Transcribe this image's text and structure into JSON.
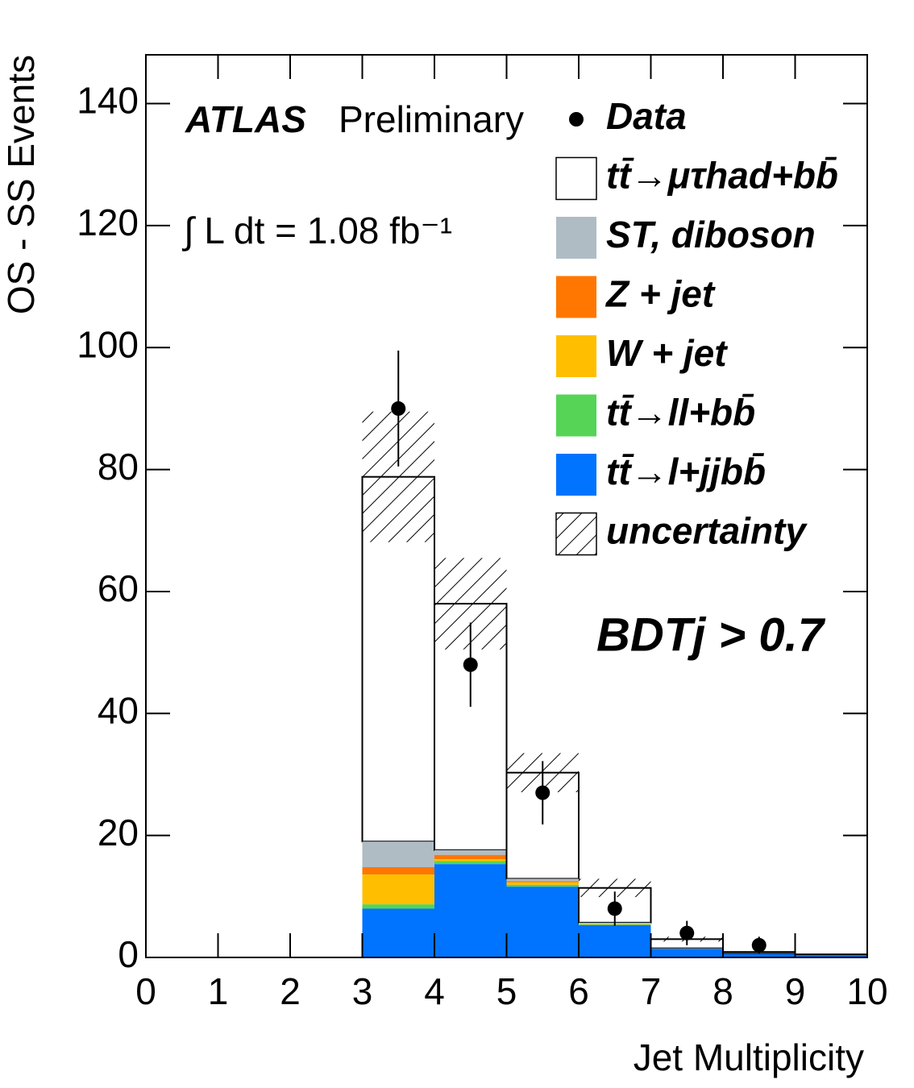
{
  "chart_data": {
    "type": "histogram",
    "xlabel": "Jet Multiplicity",
    "ylabel": "OS - SS Events",
    "annotations": {
      "experiment": "ATLAS",
      "status": "Preliminary",
      "luminosity": "∫ L dt = 1.08 fb⁻¹",
      "selection": "BDTj > 0.7"
    },
    "bins": [
      0,
      1,
      2,
      3,
      4,
      5,
      6,
      7,
      8,
      9,
      10
    ],
    "series": [
      {
        "name": "tt̄→l+jjbb̄",
        "color": "#0073ff",
        "values": [
          0,
          0,
          0,
          8.0,
          15.3,
          11.6,
          5.3,
          1.4,
          0.6,
          0.4
        ]
      },
      {
        "name": "tt̄→ll+bb̄",
        "color": "#55d455",
        "values": [
          0,
          0,
          0,
          0.7,
          0.5,
          0.3,
          0.1,
          0.0,
          0.0,
          0.0
        ]
      },
      {
        "name": "W + jet",
        "color": "#ffbf00",
        "values": [
          0,
          0,
          0,
          4.9,
          0.3,
          0.4,
          0.1,
          0.0,
          0.0,
          0.0
        ]
      },
      {
        "name": "Z + jet",
        "color": "#ff7700",
        "values": [
          0,
          0,
          0,
          1.2,
          0.7,
          0.2,
          0.0,
          0.0,
          0.0,
          0.0
        ]
      },
      {
        "name": "ST, diboson",
        "color": "#b0bcc4",
        "values": [
          0,
          0,
          0,
          4.2,
          0.8,
          0.4,
          0.2,
          0.1,
          0.0,
          0.0
        ]
      },
      {
        "name": "tt̄→μτhad+bb̄",
        "color": "#ffffff",
        "values": [
          0,
          0,
          0,
          59.8,
          40.4,
          17.4,
          5.7,
          1.5,
          0.3,
          0.1
        ]
      }
    ],
    "uncertainty": {
      "name": "uncertainty",
      "values": [
        0,
        0,
        0,
        10.7,
        7.5,
        3.2,
        1.5,
        0.4,
        0.1,
        0.1
      ]
    },
    "data": {
      "name": "Data",
      "x": [
        3.5,
        4.5,
        5.5,
        6.5,
        7.5,
        8.5
      ],
      "values": [
        90,
        48,
        27,
        8,
        4,
        2
      ],
      "errors": [
        9.5,
        6.9,
        5.2,
        2.8,
        2.0,
        1.4
      ]
    },
    "xlim": [
      0,
      10
    ],
    "ylim": [
      0,
      148
    ],
    "xticks": [
      0,
      1,
      2,
      3,
      4,
      5,
      6,
      7,
      8,
      9,
      10
    ],
    "yticks": [
      0,
      20,
      40,
      60,
      80,
      100,
      120,
      140
    ]
  }
}
